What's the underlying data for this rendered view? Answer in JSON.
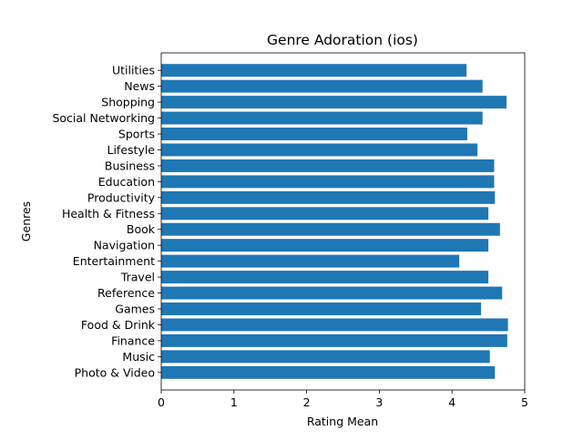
{
  "chart_data": {
    "type": "bar",
    "orientation": "horizontal",
    "title": "Genre Adoration (ios)",
    "xlabel": "Rating Mean",
    "ylabel": "Genres",
    "xlim": [
      0,
      5
    ],
    "xticks": [
      "0",
      "1",
      "2",
      "3",
      "4",
      "5"
    ],
    "grid": false,
    "bar_color": "#1f77b4",
    "categories": [
      "Photo & Video",
      "Music",
      "Finance",
      "Food & Drink",
      "Games",
      "Reference",
      "Travel",
      "Entertainment",
      "Navigation",
      "Book",
      "Health & Fitness",
      "Productivity",
      "Education",
      "Business",
      "Lifestyle",
      "Sports",
      "Social Networking",
      "Shopping",
      "News",
      "Utilities"
    ],
    "values": [
      4.59,
      4.52,
      4.76,
      4.77,
      4.4,
      4.69,
      4.5,
      4.1,
      4.5,
      4.66,
      4.5,
      4.59,
      4.58,
      4.58,
      4.35,
      4.21,
      4.42,
      4.75,
      4.42,
      4.2
    ]
  }
}
